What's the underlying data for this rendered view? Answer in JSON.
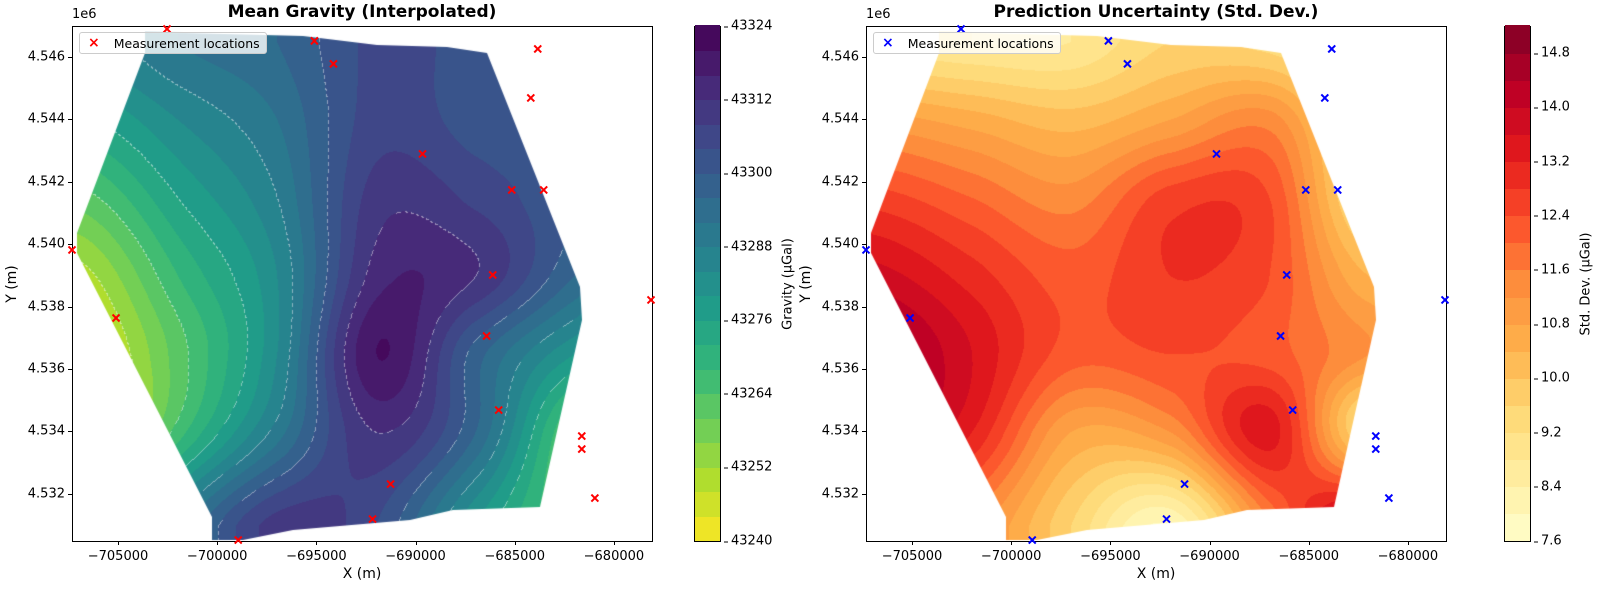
{
  "chart_data": [
    {
      "type": "heatmap",
      "title": "Mean Gravity (Interpolated)",
      "xlabel": "X (m)",
      "ylabel": "Y (m)",
      "y_offset_label": "1e6",
      "xlim": [
        -707320,
        -678080
      ],
      "ylim": [
        4530490,
        4546990
      ],
      "xticks": [
        -705000,
        -700000,
        -695000,
        -690000,
        -685000,
        -680000
      ],
      "xtick_labels": [
        "−705000",
        "−700000",
        "−695000",
        "−690000",
        "−685000",
        "−680000"
      ],
      "yticks": [
        4532000,
        4534000,
        4536000,
        4538000,
        4540000,
        4542000,
        4544000,
        4546000
      ],
      "ytick_labels": [
        "4.532",
        "4.534",
        "4.536",
        "4.538",
        "4.540",
        "4.542",
        "4.544",
        "4.546"
      ],
      "colorbar": {
        "label": "Gravity (μGal)",
        "min": 43240,
        "max": 43324,
        "step": 4,
        "ticks": [
          43240,
          43252,
          43264,
          43276,
          43288,
          43300,
          43312,
          43324
        ],
        "tick_labels": [
          "43240",
          "43252",
          "43264",
          "43276",
          "43288",
          "43300",
          "43312",
          "43324"
        ],
        "colormap_stops": [
          "#fde725",
          "#b5de2b",
          "#6ece58",
          "#35b779",
          "#1f9e89",
          "#26828e",
          "#31688e",
          "#3e4989",
          "#482878",
          "#440154"
        ]
      },
      "contour_lines": true,
      "marker_color": "#ff0000",
      "legend": {
        "label": "Measurement locations",
        "position": "top-left"
      },
      "grid_x": [
        -707000,
        -702000,
        -697000,
        -692000,
        -687000,
        -682000,
        -678000
      ],
      "grid_y": [
        4546500,
        4544000,
        4541500,
        4539000,
        4536500,
        4534000,
        4531000
      ],
      "grid_values": [
        [
          43285,
          43292,
          43296,
          43305,
          43302,
          43296,
          43294
        ],
        [
          43275,
          43284,
          43292,
          43306,
          43302,
          43298,
          43296
        ],
        [
          43262,
          43276,
          43288,
          43310,
          43307,
          43300,
          43296
        ],
        [
          43250,
          43268,
          43284,
          43314,
          43312,
          43296,
          43286
        ],
        [
          43244,
          43262,
          43284,
          43320,
          43298,
          43280,
          43270
        ],
        [
          43240,
          43266,
          43290,
          43312,
          43296,
          43262,
          43250
        ],
        [
          43262,
          43290,
          43310,
          43304,
          43280,
          43262,
          43255
        ]
      ]
    },
    {
      "type": "heatmap",
      "title": "Prediction Uncertainty (Std. Dev.)",
      "xlabel": "X (m)",
      "ylabel": "Y (m)",
      "y_offset_label": "1e6",
      "xlim": [
        -707320,
        -678080
      ],
      "ylim": [
        4530490,
        4546990
      ],
      "xticks": [
        -705000,
        -700000,
        -695000,
        -690000,
        -685000,
        -680000
      ],
      "xtick_labels": [
        "−705000",
        "−700000",
        "−695000",
        "−690000",
        "−685000",
        "−680000"
      ],
      "yticks": [
        4532000,
        4534000,
        4536000,
        4538000,
        4540000,
        4542000,
        4544000,
        4546000
      ],
      "ytick_labels": [
        "4.532",
        "4.534",
        "4.536",
        "4.538",
        "4.540",
        "4.542",
        "4.544",
        "4.546"
      ],
      "colorbar": {
        "label": "Std. Dev. (μGal)",
        "min": 7.6,
        "max": 15.2,
        "step": 0.4,
        "ticks": [
          7.6,
          8.4,
          9.2,
          10.0,
          10.8,
          11.6,
          12.4,
          13.2,
          14.0,
          14.8
        ],
        "tick_labels": [
          "7.6",
          "8.4",
          "9.2",
          "10.0",
          "10.8",
          "11.6",
          "12.4",
          "13.2",
          "14.0",
          "14.8"
        ],
        "colormap_stops": [
          "#ffffcc",
          "#ffeda0",
          "#fed976",
          "#feb24c",
          "#fd8d3c",
          "#fc4e2a",
          "#e31a1c",
          "#bd0026",
          "#800026"
        ]
      },
      "contour_lines": false,
      "marker_color": "#0000ff",
      "legend": {
        "label": "Measurement locations",
        "position": "top-left"
      },
      "grid_x": [
        -707000,
        -702000,
        -697000,
        -692000,
        -687000,
        -682000,
        -678000
      ],
      "grid_y": [
        4546500,
        4544000,
        4541500,
        4539000,
        4536500,
        4534000,
        4531000
      ],
      "grid_values": [
        [
          9.0,
          8.8,
          8.8,
          9.6,
          9.4,
          8.6,
          9.0
        ],
        [
          11.0,
          10.6,
          10.2,
          10.8,
          11.4,
          9.0,
          9.6
        ],
        [
          12.6,
          12.0,
          11.4,
          12.6,
          12.4,
          9.2,
          10.2
        ],
        [
          13.8,
          13.0,
          12.2,
          12.8,
          12.4,
          10.4,
          10.6
        ],
        [
          14.8,
          13.6,
          12.2,
          12.4,
          12.2,
          11.2,
          10.8
        ],
        [
          14.4,
          13.2,
          10.8,
          11.2,
          13.4,
          9.4,
          11.0
        ],
        [
          13.0,
          11.5,
          9.6,
          8.0,
          11.6,
          14.5,
          12.0
        ]
      ]
    }
  ],
  "measurement_points": [
    [
      -702530,
      4546897
    ],
    [
      -695100,
      4546513
    ],
    [
      -694140,
      4545776
    ],
    [
      -683840,
      4546256
    ],
    [
      -684190,
      4544686
    ],
    [
      -689650,
      4542891
    ],
    [
      -685150,
      4541737
    ],
    [
      -683540,
      4541737
    ],
    [
      -707320,
      4539814
    ],
    [
      -686110,
      4539013
    ],
    [
      -678130,
      4538212
    ],
    [
      -705100,
      4537635
    ],
    [
      -686420,
      4537058
    ],
    [
      -685810,
      4534686
    ],
    [
      -681620,
      4533853
    ],
    [
      -681620,
      4533436
    ],
    [
      -691260,
      4532314
    ],
    [
      -680960,
      4531866
    ],
    [
      -692170,
      4531193
    ],
    [
      -698940,
      4530520
    ]
  ]
}
